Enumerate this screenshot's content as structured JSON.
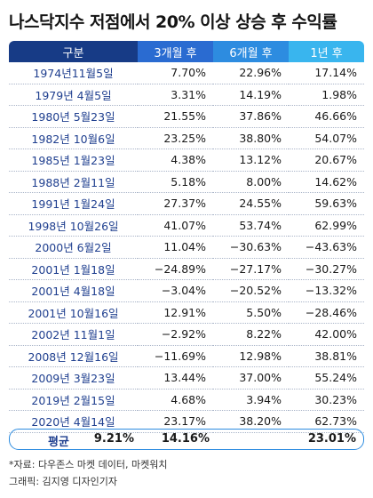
{
  "title": "나스닥지수 저점에서 20% 이상 상승 후 수익률",
  "columns": [
    "구분",
    "3개월 후",
    "6개월 후",
    "1년 후"
  ],
  "rows": [
    {
      "date": "1974년11월5일",
      "m3": "7.70%",
      "m6": "22.96%",
      "y1": "17.14%"
    },
    {
      "date": "1979년 4월5일",
      "m3": "3.31%",
      "m6": "14.19%",
      "y1": "1.98%"
    },
    {
      "date": "1980년 5월23일",
      "m3": "21.55%",
      "m6": "37.86%",
      "y1": "46.66%"
    },
    {
      "date": "1982년 10월6일",
      "m3": "23.25%",
      "m6": "38.80%",
      "y1": "54.07%"
    },
    {
      "date": "1985년 1월23일",
      "m3": "4.38%",
      "m6": "13.12%",
      "y1": "20.67%"
    },
    {
      "date": "1988년 2월11일",
      "m3": "5.18%",
      "m6": "8.00%",
      "y1": "14.62%"
    },
    {
      "date": "1991년 1월24일",
      "m3": "27.37%",
      "m6": "24.55%",
      "y1": "59.63%"
    },
    {
      "date": "1998년 10월26일",
      "m3": "41.07%",
      "m6": "53.74%",
      "y1": "62.99%"
    },
    {
      "date": "2000년 6월2일",
      "m3": "11.04%",
      "m6": "−30.63%",
      "y1": "−43.63%"
    },
    {
      "date": "2001년 1월18일",
      "m3": "−24.89%",
      "m6": "−27.17%",
      "y1": "−30.27%"
    },
    {
      "date": "2001년 4월18일",
      "m3": "−3.04%",
      "m6": "−20.52%",
      "y1": "−13.32%"
    },
    {
      "date": "2001년 10월16일",
      "m3": "12.91%",
      "m6": "5.50%",
      "y1": "−28.46%"
    },
    {
      "date": "2002년 11월1일",
      "m3": "−2.92%",
      "m6": "8.22%",
      "y1": "42.00%"
    },
    {
      "date": "2008년 12월16일",
      "m3": "−11.69%",
      "m6": "12.98%",
      "y1": "38.81%"
    },
    {
      "date": "2009년 3월23일",
      "m3": "13.44%",
      "m6": "37.00%",
      "y1": "55.24%"
    },
    {
      "date": "2019년 2월15일",
      "m3": "4.68%",
      "m6": "3.94%",
      "y1": "30.23%"
    },
    {
      "date": "2020년 4월14일",
      "m3": "23.17%",
      "m6": "38.20%",
      "y1": "62.73%"
    }
  ],
  "average": {
    "label": "평균",
    "m3": "9.21%",
    "m6": "14.16%",
    "y1": "23.01%"
  },
  "source": "*자료: 다우존스 마켓 데이터, 마켓워치",
  "credit": "그래픽: 김지영 디자인기자",
  "colors": {
    "header_dark": "#173b86",
    "header_mid": "#2a6bd1",
    "header_light": "#39b5ee",
    "date_text": "#1f3f8f"
  }
}
